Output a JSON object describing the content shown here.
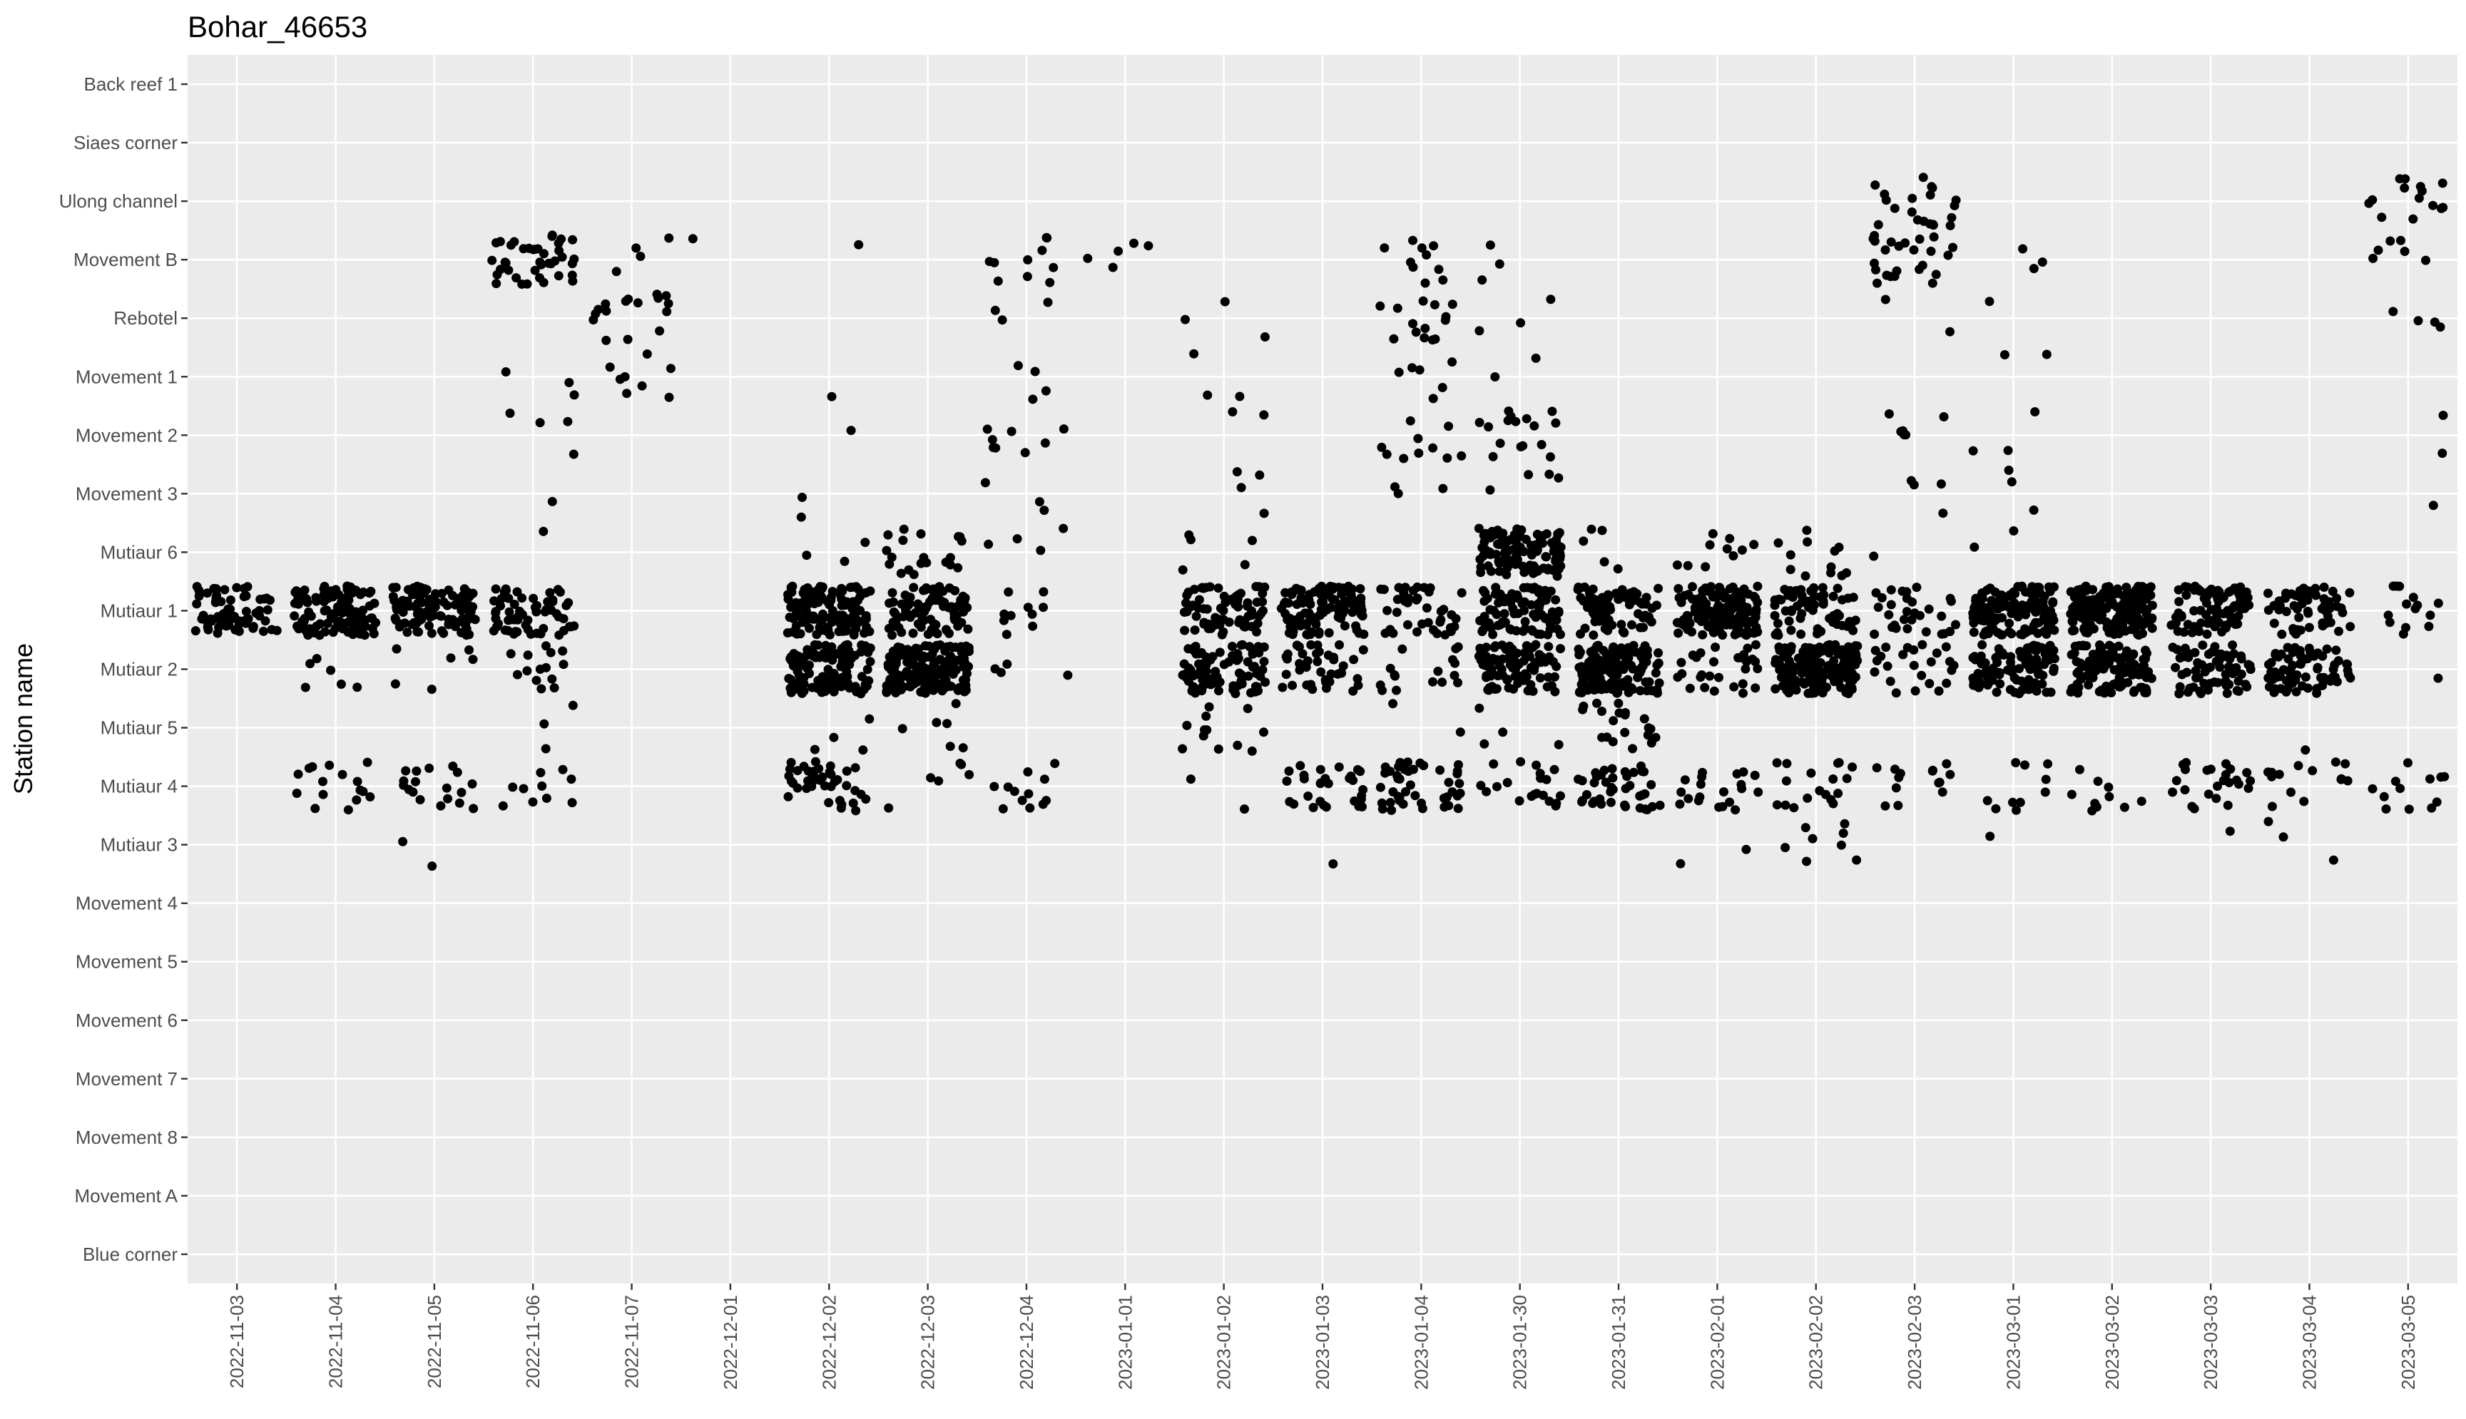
{
  "chart_data": {
    "type": "scatter",
    "title": "Bohar_46653",
    "xlabel": "",
    "ylabel": "Station name",
    "grid": true,
    "legend": "none",
    "point_color": "#000000",
    "panel_background": "#ebebeb",
    "gridline_color": "#ffffff",
    "categories_x": [
      "2022-11-03",
      "2022-11-04",
      "2022-11-05",
      "2022-11-06",
      "2022-11-07",
      "2022-12-01",
      "2022-12-02",
      "2022-12-03",
      "2022-12-04",
      "2023-01-01",
      "2023-01-02",
      "2023-01-03",
      "2023-01-04",
      "2023-01-30",
      "2023-01-31",
      "2023-02-01",
      "2023-02-02",
      "2023-02-03",
      "2023-03-01",
      "2023-03-02",
      "2023-03-03",
      "2023-03-04",
      "2023-03-05"
    ],
    "categories_y": [
      "Back reef 1",
      "Siaes corner",
      "Ulong channel",
      "Movement B",
      "Rebotel",
      "Movement 1",
      "Movement 2",
      "Movement 3",
      "Mutiaur 6",
      "Mutiaur 1",
      "Mutiaur 2",
      "Mutiaur 5",
      "Mutiaur 4",
      "Mutiaur 3",
      "Movement 4",
      "Movement 5",
      "Movement 6",
      "Movement 7",
      "Movement 8",
      "Movement A",
      "Blue corner"
    ],
    "series": [
      {
        "points": [
          [
            "2022-11-03",
            "Mutiaur 1",
            70
          ],
          [
            "2022-11-04",
            "Mutiaur 1",
            110
          ],
          [
            "2022-11-04",
            "Mutiaur 2",
            6
          ],
          [
            "2022-11-04",
            "Mutiaur 4",
            16
          ],
          [
            "2022-11-05",
            "Mutiaur 1",
            110
          ],
          [
            "2022-11-05",
            "Mutiaur 2",
            6
          ],
          [
            "2022-11-05",
            "Mutiaur 4",
            18
          ],
          [
            "2022-11-05",
            "Mutiaur 3",
            2
          ],
          [
            "2022-11-06",
            "Movement B",
            40
          ],
          [
            "2022-11-06",
            "Movement 1",
            3
          ],
          [
            "2022-11-06",
            "Movement 2",
            4
          ],
          [
            "2022-11-06",
            "Movement 3",
            1
          ],
          [
            "2022-11-06",
            "Mutiaur 6",
            1
          ],
          [
            "2022-11-06",
            "Mutiaur 1",
            60
          ],
          [
            "2022-11-06",
            "Mutiaur 2",
            14
          ],
          [
            "2022-11-06",
            "Mutiaur 5",
            3
          ],
          [
            "2022-11-06",
            "Mutiaur 4",
            10
          ],
          [
            "2022-11-07",
            "Movement B",
            4
          ],
          [
            "2022-11-07",
            "Rebotel",
            16
          ],
          [
            "2022-11-07",
            "Movement 1",
            8
          ],
          [
            "2022-12-01",
            "Movement B",
            1
          ],
          [
            "2022-12-02",
            "Movement B",
            1
          ],
          [
            "2022-12-02",
            "Movement 1",
            1
          ],
          [
            "2022-12-02",
            "Movement 2",
            1
          ],
          [
            "2022-12-02",
            "Movement 3",
            2
          ],
          [
            "2022-12-02",
            "Mutiaur 6",
            3
          ],
          [
            "2022-12-02",
            "Mutiaur 1",
            130
          ],
          [
            "2022-12-02",
            "Mutiaur 2",
            120
          ],
          [
            "2022-12-02",
            "Mutiaur 5",
            4
          ],
          [
            "2022-12-02",
            "Mutiaur 4",
            40
          ],
          [
            "2022-12-03",
            "Mutiaur 6",
            20
          ],
          [
            "2022-12-03",
            "Mutiaur 1",
            90
          ],
          [
            "2022-12-03",
            "Mutiaur 2",
            160
          ],
          [
            "2022-12-03",
            "Mutiaur 5",
            6
          ],
          [
            "2022-12-03",
            "Mutiaur 4",
            6
          ],
          [
            "2022-12-04",
            "Movement B",
            10
          ],
          [
            "2022-12-04",
            "Rebotel",
            3
          ],
          [
            "2022-12-04",
            "Movement 1",
            4
          ],
          [
            "2022-12-04",
            "Movement 2",
            8
          ],
          [
            "2022-12-04",
            "Movement 3",
            3
          ],
          [
            "2022-12-04",
            "Mutiaur 6",
            4
          ],
          [
            "2022-12-04",
            "Mutiaur 1",
            10
          ],
          [
            "2022-12-04",
            "Mutiaur 2",
            4
          ],
          [
            "2022-12-04",
            "Mutiaur 4",
            12
          ],
          [
            "2023-01-01",
            "Movement B",
            5
          ],
          [
            "2023-01-02",
            "Rebotel",
            3
          ],
          [
            "2023-01-02",
            "Movement 1",
            3
          ],
          [
            "2023-01-02",
            "Movement 2",
            2
          ],
          [
            "2023-01-02",
            "Movement 3",
            4
          ],
          [
            "2023-01-02",
            "Mutiaur 6",
            5
          ],
          [
            "2023-01-02",
            "Mutiaur 1",
            70
          ],
          [
            "2023-01-02",
            "Mutiaur 2",
            90
          ],
          [
            "2023-01-02",
            "Mutiaur 5",
            12
          ],
          [
            "2023-01-02",
            "Mutiaur 4",
            2
          ],
          [
            "2023-01-03",
            "Mutiaur 1",
            110
          ],
          [
            "2023-01-03",
            "Mutiaur 2",
            40
          ],
          [
            "2023-01-03",
            "Mutiaur 4",
            30
          ],
          [
            "2023-01-03",
            "Mutiaur 3",
            1
          ],
          [
            "2023-01-04",
            "Movement B",
            10
          ],
          [
            "2023-01-04",
            "Rebotel",
            14
          ],
          [
            "2023-01-04",
            "Movement 1",
            6
          ],
          [
            "2023-01-04",
            "Movement 2",
            10
          ],
          [
            "2023-01-04",
            "Movement 3",
            3
          ],
          [
            "2023-01-04",
            "Mutiaur 1",
            40
          ],
          [
            "2023-01-04",
            "Mutiaur 2",
            16
          ],
          [
            "2023-01-04",
            "Mutiaur 5",
            2
          ],
          [
            "2023-01-04",
            "Mutiaur 4",
            45
          ],
          [
            "2023-01-30",
            "Movement B",
            3
          ],
          [
            "2023-01-30",
            "Rebotel",
            3
          ],
          [
            "2023-01-30",
            "Movement 1",
            2
          ],
          [
            "2023-01-30",
            "Movement 2",
            16
          ],
          [
            "2023-01-30",
            "Movement 3",
            4
          ],
          [
            "2023-01-30",
            "Mutiaur 6",
            110
          ],
          [
            "2023-01-30",
            "Mutiaur 1",
            90
          ],
          [
            "2023-01-30",
            "Mutiaur 2",
            90
          ],
          [
            "2023-01-30",
            "Mutiaur 5",
            4
          ],
          [
            "2023-01-30",
            "Mutiaur 4",
            20
          ],
          [
            "2023-01-31",
            "Mutiaur 6",
            5
          ],
          [
            "2023-01-31",
            "Mutiaur 1",
            80
          ],
          [
            "2023-01-31",
            "Mutiaur 2",
            140
          ],
          [
            "2023-01-31",
            "Mutiaur 5",
            20
          ],
          [
            "2023-01-31",
            "Mutiaur 4",
            40
          ],
          [
            "2023-02-01",
            "Mutiaur 6",
            10
          ],
          [
            "2023-02-01",
            "Mutiaur 1",
            140
          ],
          [
            "2023-02-01",
            "Mutiaur 2",
            30
          ],
          [
            "2023-02-01",
            "Mutiaur 4",
            20
          ],
          [
            "2023-02-01",
            "Mutiaur 3",
            2
          ],
          [
            "2023-02-02",
            "Mutiaur 6",
            12
          ],
          [
            "2023-02-02",
            "Mutiaur 1",
            60
          ],
          [
            "2023-02-02",
            "Mutiaur 2",
            160
          ],
          [
            "2023-02-02",
            "Mutiaur 4",
            18
          ],
          [
            "2023-02-02",
            "Mutiaur 3",
            8
          ],
          [
            "2023-02-03",
            "Ulong channel",
            20
          ],
          [
            "2023-02-03",
            "Movement B",
            24
          ],
          [
            "2023-02-03",
            "Rebotel",
            2
          ],
          [
            "2023-02-03",
            "Movement 2",
            6
          ],
          [
            "2023-02-03",
            "Movement 3",
            4
          ],
          [
            "2023-02-03",
            "Mutiaur 6",
            1
          ],
          [
            "2023-02-03",
            "Mutiaur 1",
            30
          ],
          [
            "2023-02-03",
            "Mutiaur 2",
            24
          ],
          [
            "2023-02-03",
            "Mutiaur 4",
            14
          ],
          [
            "2023-03-01",
            "Movement B",
            3
          ],
          [
            "2023-03-01",
            "Rebotel",
            1
          ],
          [
            "2023-03-01",
            "Movement 1",
            2
          ],
          [
            "2023-03-01",
            "Movement 2",
            3
          ],
          [
            "2023-03-01",
            "Movement 3",
            3
          ],
          [
            "2023-03-01",
            "Mutiaur 6",
            2
          ],
          [
            "2023-03-01",
            "Mutiaur 1",
            130
          ],
          [
            "2023-03-01",
            "Mutiaur 2",
            100
          ],
          [
            "2023-03-01",
            "Mutiaur 4",
            10
          ],
          [
            "2023-03-01",
            "Mutiaur 3",
            1
          ],
          [
            "2023-03-02",
            "Mutiaur 1",
            160
          ],
          [
            "2023-03-02",
            "Mutiaur 2",
            110
          ],
          [
            "2023-03-02",
            "Mutiaur 4",
            10
          ],
          [
            "2023-03-03",
            "Mutiaur 1",
            80
          ],
          [
            "2023-03-03",
            "Mutiaur 2",
            70
          ],
          [
            "2023-03-03",
            "Mutiaur 4",
            24
          ],
          [
            "2023-03-03",
            "Mutiaur 3",
            1
          ],
          [
            "2023-03-04",
            "Mutiaur 1",
            60
          ],
          [
            "2023-03-04",
            "Mutiaur 2",
            70
          ],
          [
            "2023-03-04",
            "Mutiaur 5",
            1
          ],
          [
            "2023-03-04",
            "Mutiaur 4",
            14
          ],
          [
            "2023-03-04",
            "Mutiaur 3",
            3
          ],
          [
            "2023-03-05",
            "Ulong channel",
            14
          ],
          [
            "2023-03-05",
            "Movement B",
            6
          ],
          [
            "2023-03-05",
            "Rebotel",
            4
          ],
          [
            "2023-03-05",
            "Movement 2",
            2
          ],
          [
            "2023-03-05",
            "Movement 3",
            1
          ],
          [
            "2023-03-05",
            "Mutiaur 1",
            14
          ],
          [
            "2023-03-05",
            "Mutiaur 2",
            1
          ],
          [
            "2023-03-05",
            "Mutiaur 4",
            12
          ]
        ]
      }
    ]
  }
}
